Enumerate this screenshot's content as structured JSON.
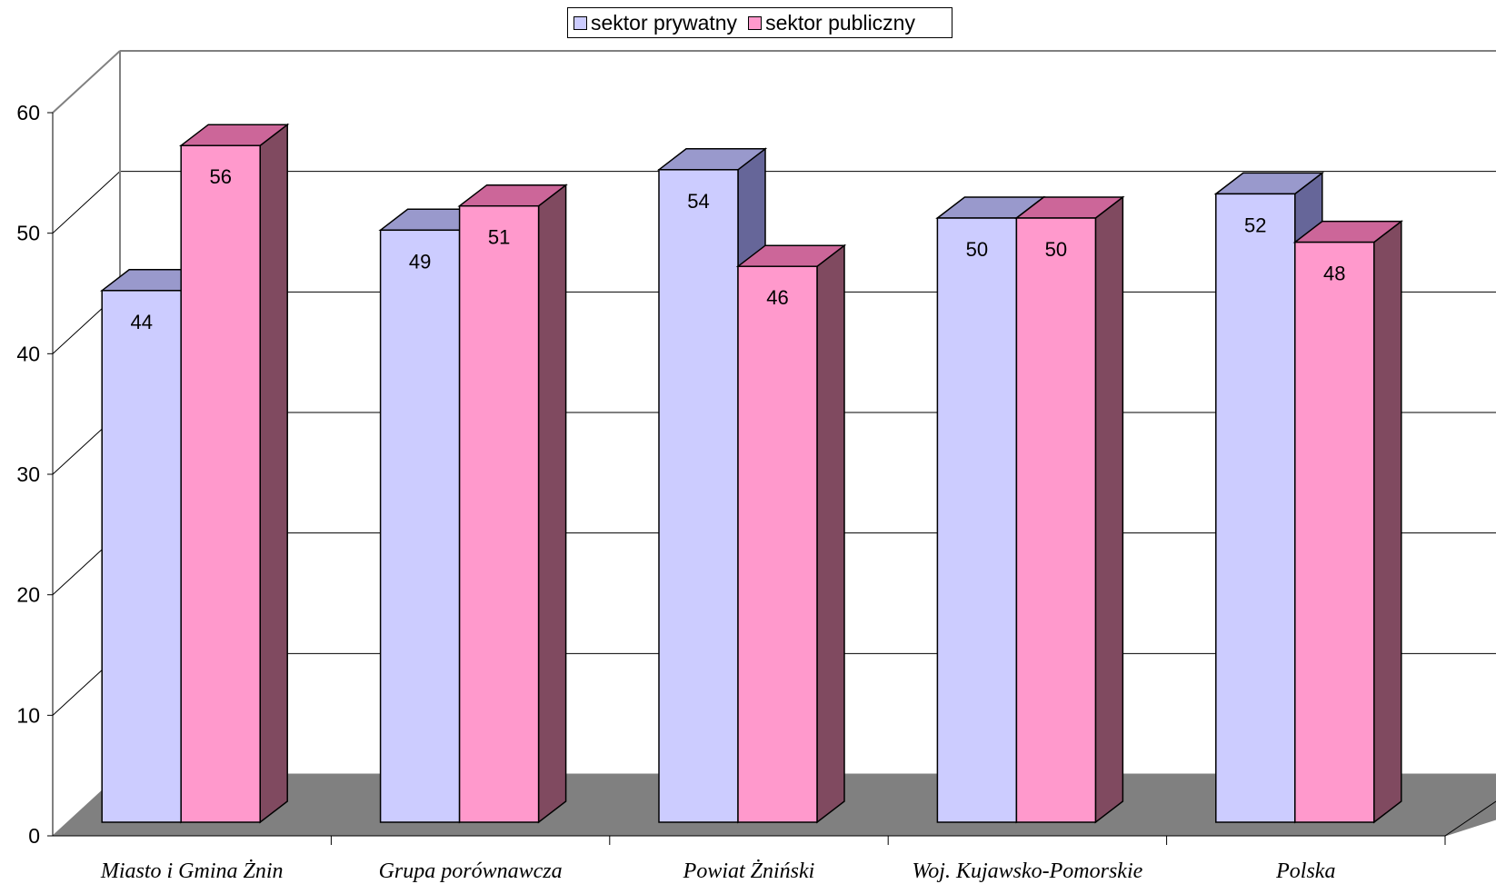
{
  "chart_data": {
    "type": "bar",
    "categories": [
      "Miasto i Gmina Żnin",
      "Grupa porównawcza",
      "Powiat Żniński",
      "Woj. Kujawsko-Pomorskie",
      "Polska"
    ],
    "series": [
      {
        "name": "sektor prywatny",
        "values": [
          44,
          49,
          54,
          50,
          52
        ],
        "color": "#ccccff",
        "top_color": "#9999cc",
        "side_color": "#666699"
      },
      {
        "name": "sektor publiczny",
        "values": [
          56,
          51,
          46,
          50,
          48
        ],
        "color": "#ff99cc",
        "top_color": "#cc6699",
        "side_color": "#804a60"
      }
    ],
    "ylim": [
      0,
      60
    ],
    "yticks": [
      0,
      10,
      20,
      30,
      40,
      50,
      60
    ],
    "grid": true,
    "legend_position": "top-center",
    "style": "3d-clustered-column"
  },
  "legend": {
    "items": [
      {
        "label": "sektor prywatny",
        "color": "#ccccff"
      },
      {
        "label": "sektor publiczny",
        "color": "#ff99cc"
      }
    ]
  }
}
